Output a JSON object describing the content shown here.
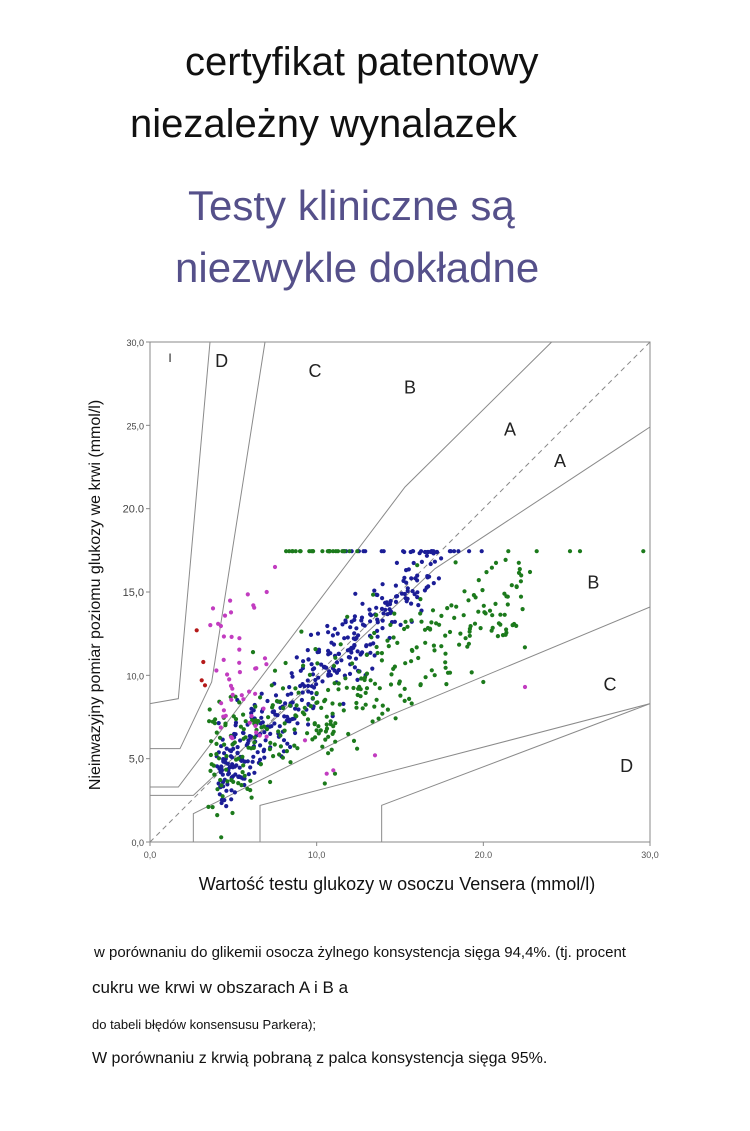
{
  "header": {
    "line1": "certyfikat patentowy",
    "line2": "niezależny wynalazek",
    "tagline1": "Testy kliniczne są",
    "tagline2": "niezwykle dokładne"
  },
  "chart_data": {
    "type": "scatter",
    "title": "",
    "xlabel": "Wartość testu glukozy w osoczu Vensera (mmol/l)",
    "ylabel": "Nieinwazyjny pomiar poziomu glukozy we krwi (mmol/l)",
    "xlim": [
      0,
      30
    ],
    "ylim": [
      0,
      30
    ],
    "xticks": [
      0,
      10,
      20,
      30
    ],
    "yticks": [
      0,
      5,
      10,
      15,
      20,
      25,
      30
    ],
    "xtick_labels": [
      "0,0",
      "10,0",
      "20.0",
      "30,0"
    ],
    "ytick_labels": [
      "0,0",
      "5,0",
      "10,0",
      "15,0",
      "20.0",
      "25,0",
      "30,0"
    ],
    "grid": false,
    "zone_labels": [
      {
        "text": "I",
        "x": 1.2,
        "y": 28.8
      },
      {
        "text": "D",
        "x": 4.3,
        "y": 28.5
      },
      {
        "text": "C",
        "x": 9.9,
        "y": 27.9
      },
      {
        "text": "B",
        "x": 15.6,
        "y": 26.9
      },
      {
        "text": "A",
        "x": 21.6,
        "y": 24.4
      },
      {
        "text": "A",
        "x": 24.6,
        "y": 22.5
      },
      {
        "text": "B",
        "x": 26.6,
        "y": 15.2
      },
      {
        "text": "C",
        "x": 27.6,
        "y": 9.1
      },
      {
        "text": "D",
        "x": 28.6,
        "y": 4.2
      }
    ],
    "zone_lines": [
      [
        [
          0,
          30
        ],
        [
          30,
          30
        ]
      ],
      [
        [
          0,
          0
        ],
        [
          0,
          30
        ]
      ],
      [
        [
          30,
          0
        ],
        [
          30,
          30
        ]
      ],
      [
        [
          0,
          0
        ],
        [
          30,
          0
        ]
      ],
      [
        [
          0,
          0
        ],
        [
          30,
          30
        ]
      ],
      [
        [
          0,
          8.3
        ],
        [
          1.7,
          8.6
        ],
        [
          3.6,
          30
        ]
      ],
      [
        [
          0,
          5.6
        ],
        [
          1.8,
          5.6
        ],
        [
          3.7,
          9.6
        ],
        [
          6.9,
          30
        ]
      ],
      [
        [
          0,
          3.3
        ],
        [
          1.7,
          3.3
        ],
        [
          15.3,
          21.3
        ],
        [
          24.1,
          30
        ]
      ],
      [
        [
          0,
          2.8
        ],
        [
          2.6,
          2.8
        ],
        [
          17.1,
          16.4
        ],
        [
          30,
          24.9
        ]
      ],
      [
        [
          2.6,
          0
        ],
        [
          2.6,
          1.7
        ],
        [
          14.4,
          7.6
        ],
        [
          30,
          14.1
        ]
      ],
      [
        [
          6.6,
          0
        ],
        [
          6.6,
          2.2
        ],
        [
          30,
          8.3
        ]
      ],
      [
        [
          13.9,
          0
        ],
        [
          13.9,
          2.2
        ],
        [
          30,
          8.3
        ]
      ]
    ],
    "series": [
      {
        "color": "#1b1d96",
        "pattern": "blue"
      },
      {
        "color": "#1c7a1c",
        "pattern": "green"
      },
      {
        "color": "#c23cc0",
        "pattern": "magenta"
      },
      {
        "color": "#b51a1a",
        "pattern": "red"
      }
    ]
  },
  "footer": {
    "line1": "w porównaniu do glikemii osocza żylnego konsystencja sięga 94,4%. (tj. procent",
    "line2": "cukru we krwi w obszarach A i B a",
    "line3": "do tabeli błędów konsensusu Parkera);",
    "line4": "W porównaniu z krwią pobraną z palca konsystencja sięga 95%."
  }
}
